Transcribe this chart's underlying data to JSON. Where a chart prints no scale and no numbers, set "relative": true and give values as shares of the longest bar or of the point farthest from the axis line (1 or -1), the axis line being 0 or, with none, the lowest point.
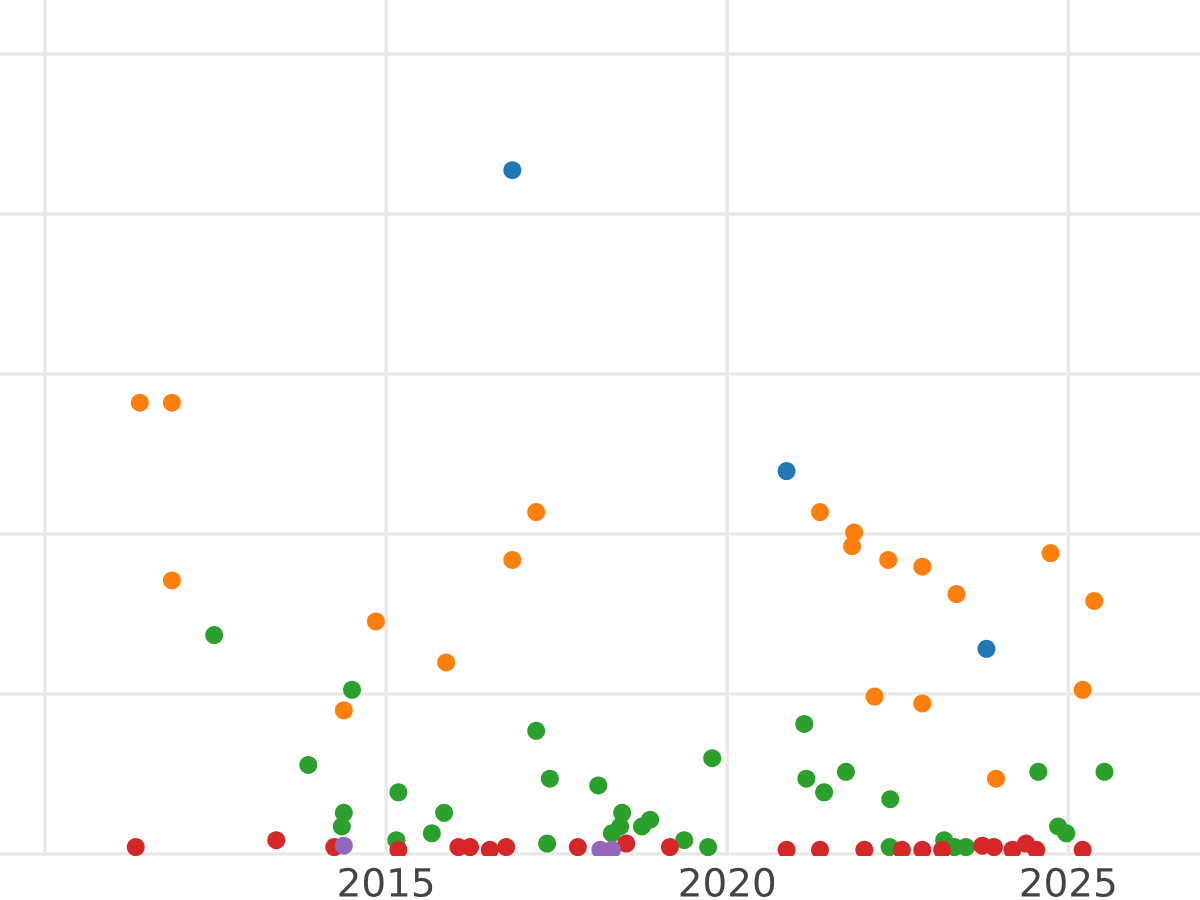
{
  "chart_data": {
    "type": "scatter",
    "relative": true,
    "grid": true,
    "tick_labels": "x",
    "marker": "circle",
    "legend": false,
    "xlim": [
      2009.34,
      2026.93
    ],
    "xticks": [
      {
        "value": 2010,
        "label": null
      },
      2015,
      2020,
      2025
    ],
    "series": [
      {
        "color": "#1f77b4",
        "x": [
          2016.85,
          2020.87,
          2023.8
        ],
        "values": [
          1.0,
          0.56,
          0.3
        ]
      },
      {
        "color": "#ff7f0e",
        "x": [
          2011.39,
          2011.86,
          2011.86,
          2014.85,
          2014.38,
          2015.88,
          2016.85,
          2017.2,
          2021.36,
          2021.86,
          2021.83,
          2022.36,
          2022.86,
          2023.36,
          2022.16,
          2022.86,
          2023.94,
          2024.74,
          2025.38,
          2025.21
        ],
        "values": [
          0.66,
          0.66,
          0.4,
          0.34,
          0.21,
          0.28,
          0.43,
          0.5,
          0.5,
          0.47,
          0.45,
          0.43,
          0.42,
          0.38,
          0.23,
          0.22,
          0.11,
          0.44,
          0.37,
          0.24
        ]
      },
      {
        "color": "#2ca02c",
        "x": [
          2012.48,
          2013.86,
          2014.5,
          2014.38,
          2014.35,
          2015.18,
          2015.15,
          2015.67,
          2015.85,
          2017.2,
          2017.4,
          2017.36,
          2018.11,
          2018.46,
          2018.31,
          2018.43,
          2018.75,
          2018.87,
          2019.37,
          2019.78,
          2019.72,
          2021.13,
          2021.16,
          2021.42,
          2021.74,
          2022.39,
          2022.38,
          2023.18,
          2023.33,
          2023.5,
          2024.56,
          2024.85,
          2024.97,
          2025.53
        ],
        "values": [
          0.32,
          0.13,
          0.24,
          0.06,
          0.04,
          0.09,
          0.02,
          0.03,
          0.06,
          0.18,
          0.11,
          0.015,
          0.1,
          0.06,
          0.03,
          0.04,
          0.04,
          0.05,
          0.02,
          0.14,
          0.01,
          0.19,
          0.11,
          0.09,
          0.12,
          0.08,
          0.01,
          0.02,
          0.01,
          0.01,
          0.12,
          0.04,
          0.03,
          0.12
        ]
      },
      {
        "color": "#d62728",
        "x": [
          2011.33,
          2013.39,
          2014.24,
          2015.18,
          2016.06,
          2016.23,
          2016.52,
          2016.76,
          2017.81,
          2018.52,
          2019.16,
          2020.87,
          2021.36,
          2022.01,
          2022.56,
          2022.86,
          2023.15,
          2023.74,
          2023.91,
          2024.18,
          2024.38,
          2024.53,
          2025.21
        ],
        "values": [
          0.01,
          0.02,
          0.01,
          0.006,
          0.01,
          0.01,
          0.006,
          0.01,
          0.01,
          0.015,
          0.01,
          0.006,
          0.006,
          0.006,
          0.006,
          0.006,
          0.006,
          0.012,
          0.01,
          0.006,
          0.015,
          0.006,
          0.006
        ]
      },
      {
        "color": "#9467bd",
        "x": [
          2014.38,
          2018.14,
          2018.31
        ],
        "values": [
          0.012,
          0.006,
          0.006
        ]
      }
    ]
  }
}
